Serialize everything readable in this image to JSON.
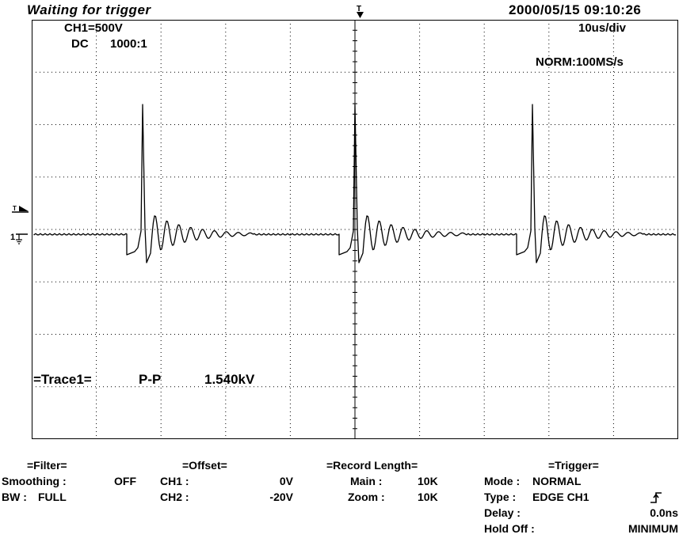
{
  "header": {
    "status": "Waiting for trigger",
    "datetime": "2000/05/15  09:10:26"
  },
  "screen": {
    "ch1_scale": "CH1=500V",
    "ch1_coupling": "DC",
    "ch1_probe": "1000:1",
    "timebase": "10us/div",
    "acq_mode": "NORM:100MS/s",
    "trace_label": "=Trace1=",
    "pp_label": "P-P",
    "pp_value": "1.540kV",
    "trig_level_marker_label": "T",
    "ch1_marker_label": "1",
    "trace_color": "#000000"
  },
  "filter": {
    "title": "=Filter=",
    "smoothing_label": "Smoothing :",
    "smoothing_value": "OFF",
    "bw_label": "BW :",
    "bw_value": "FULL"
  },
  "offset": {
    "title": "=Offset=",
    "ch1_label": "CH1 :",
    "ch1_value": "0V",
    "ch2_label": "CH2 :",
    "ch2_value": "-20V"
  },
  "record_length": {
    "title": "=Record Length=",
    "main_label": "Main :",
    "main_value": "10K",
    "zoom_label": "Zoom :",
    "zoom_value": "10K"
  },
  "trigger": {
    "title": "=Trigger=",
    "mode_label": "Mode :",
    "mode_value": "NORMAL",
    "type_label": "Type :",
    "type_value": "EDGE CH1",
    "slope_icon": "rising-edge-icon",
    "delay_label": "Delay :",
    "delay_value": "0.0ns",
    "holdoff_label": "Hold Off :",
    "holdoff_value": "MINIMUM"
  }
}
